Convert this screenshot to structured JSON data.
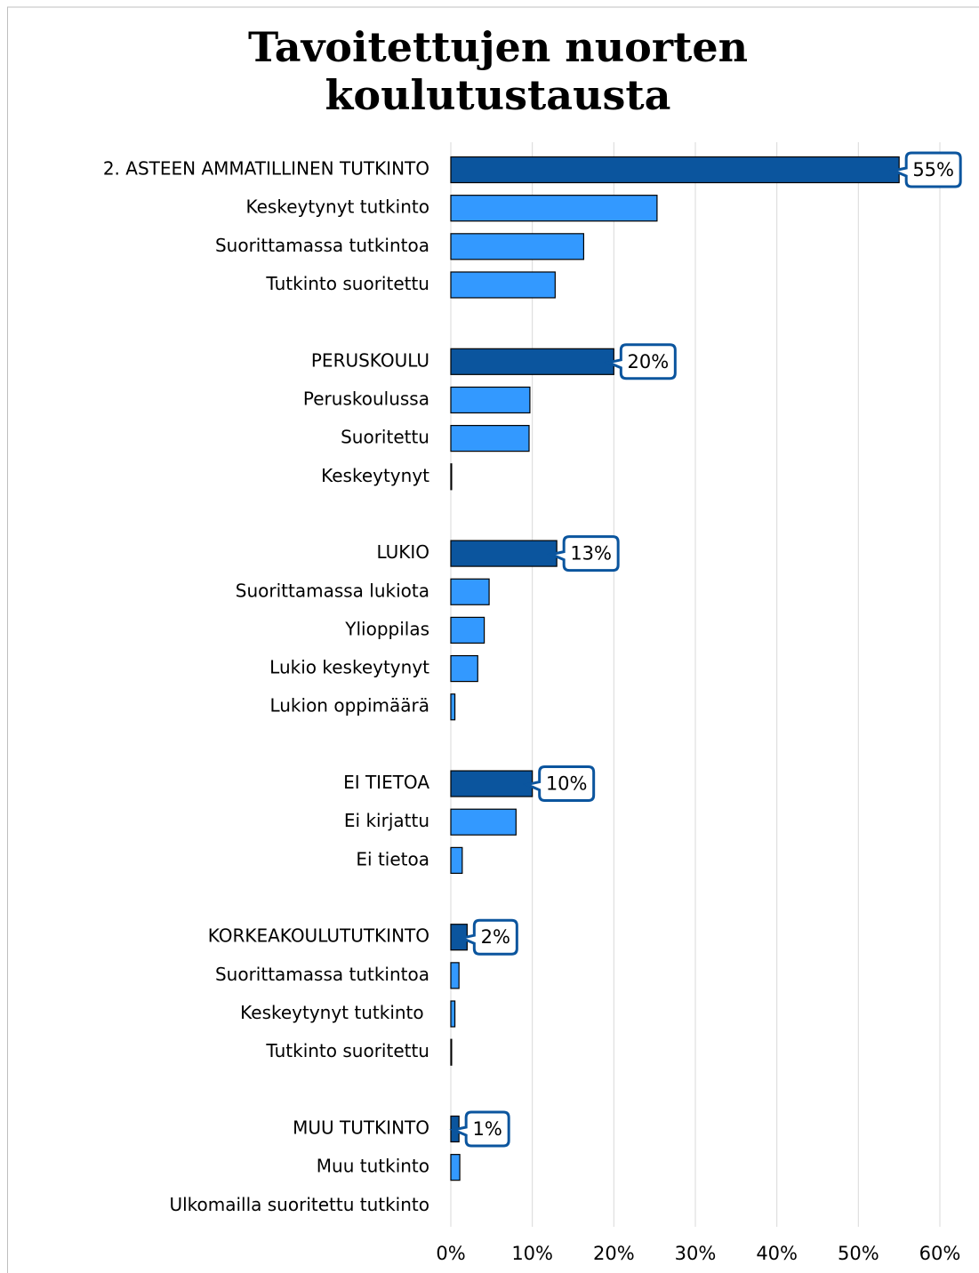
{
  "chart_data": {
    "type": "barh",
    "title": [
      "Tavoitettujen nuorten",
      "koulutustausta"
    ],
    "categories": [
      "2. ASTEEN AMMATILLINEN TUTKINTO",
      "Keskeytynyt tutkinto",
      "Suorittamassa tutkintoa",
      "Tutkinto suoritettu",
      null,
      "PERUSKOULU",
      "Peruskoulussa",
      "Suoritettu",
      "Keskeytynyt",
      null,
      "LUKIO",
      "Suorittamassa lukiota",
      "Ylioppilas",
      "Lukio keskeytynyt",
      "Lukion oppimäärä",
      null,
      "EI TIETOA",
      "Ei kirjattu",
      "Ei tietoa",
      null,
      "KORKEAKOULUTUTKINTO",
      "Suorittamassa tutkintoa",
      "Keskeytynyt tutkinto ",
      "Tutkinto suoritettu",
      null,
      "MUU TUTKINTO",
      "Muu tutkinto",
      "Ulkomailla suoritettu tutkinto"
    ],
    "values": [
      55,
      25.3,
      16.3,
      12.8,
      null,
      20,
      9.7,
      9.6,
      0.1,
      null,
      13,
      4.7,
      4.1,
      3.3,
      0.5,
      null,
      10,
      8.0,
      1.4,
      null,
      2,
      1.0,
      0.5,
      0.1,
      null,
      1,
      1.1,
      0
    ],
    "value_labels": [
      "55%",
      null,
      null,
      null,
      null,
      "20%",
      null,
      null,
      null,
      null,
      "13%",
      null,
      null,
      null,
      null,
      null,
      "10%",
      null,
      null,
      null,
      "2%",
      null,
      null,
      null,
      null,
      "1%",
      null,
      null
    ],
    "colors": [
      "#0b559e",
      "#3399ff",
      "#3399ff",
      "#3399ff",
      null,
      "#0b559e",
      "#3399ff",
      "#3399ff",
      "#3399ff",
      null,
      "#0b559e",
      "#3399ff",
      "#3399ff",
      "#3399ff",
      "#3399ff",
      null,
      "#0b559e",
      "#3399ff",
      "#3399ff",
      null,
      "#0b559e",
      "#3399ff",
      "#3399ff",
      "#3399ff",
      null,
      "#0b559e",
      "#3399ff",
      "#3399ff"
    ],
    "xlim": [
      0,
      60
    ],
    "xticks": [
      {
        "value": 0,
        "label": "0%"
      },
      {
        "value": 10,
        "label": "10%"
      },
      {
        "value": 20,
        "label": "20%"
      },
      {
        "value": 30,
        "label": "30%"
      },
      {
        "value": 40,
        "label": "40%"
      },
      {
        "value": 50,
        "label": "50%"
      },
      {
        "value": 60,
        "label": "60%"
      }
    ],
    "grid": true
  }
}
